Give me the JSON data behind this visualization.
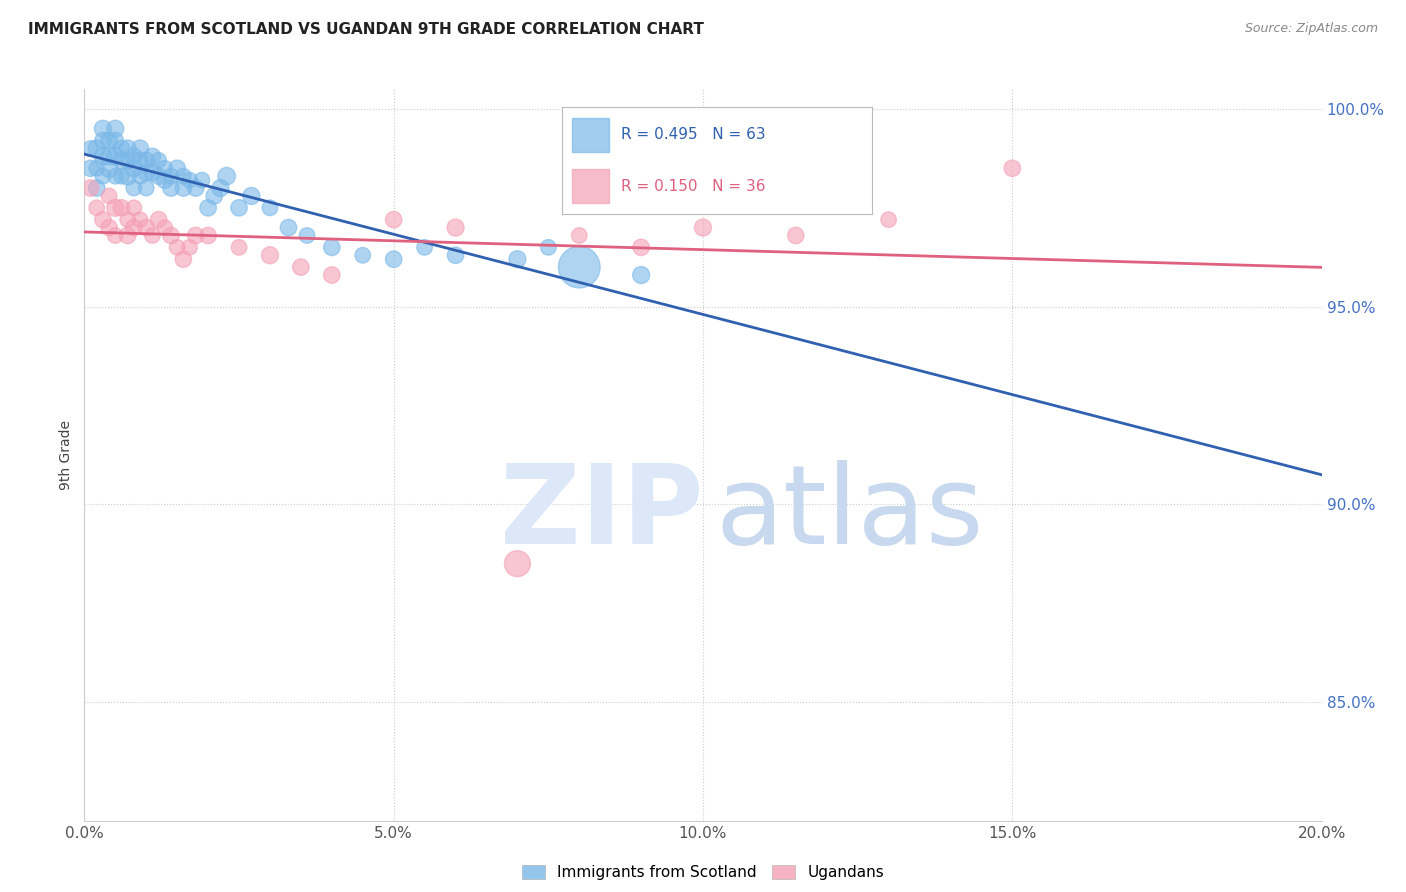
{
  "title": "IMMIGRANTS FROM SCOTLAND VS UGANDAN 9TH GRADE CORRELATION CHART",
  "source": "Source: ZipAtlas.com",
  "ylabel": "9th Grade",
  "xlim": [
    0.0,
    0.2
  ],
  "ylim": [
    0.82,
    1.005
  ],
  "ytick_labels": [
    "85.0%",
    "90.0%",
    "95.0%",
    "100.0%"
  ],
  "ytick_values": [
    0.85,
    0.9,
    0.95,
    1.0
  ],
  "xtick_labels": [
    "0.0%",
    "5.0%",
    "10.0%",
    "15.0%",
    "20.0%"
  ],
  "xtick_values": [
    0.0,
    0.05,
    0.1,
    0.15,
    0.2
  ],
  "blue_color": "#7ab8e8",
  "pink_color": "#f4a0b5",
  "blue_line_color": "#3060b0",
  "pink_line_color": "#e06080",
  "legend_blue_text_color": "#3060b0",
  "legend_pink_text_color": "#e06080",
  "axis_label_color": "#444444",
  "right_tick_color": "#4472c4",
  "watermark_zip_color": "#dce8f5",
  "watermark_atlas_color": "#c8d8ee",
  "blue_R": 0.495,
  "blue_N": 63,
  "pink_R": 0.15,
  "pink_N": 36,
  "blue_scatter_x": [
    0.001,
    0.001,
    0.002,
    0.002,
    0.002,
    0.003,
    0.003,
    0.003,
    0.003,
    0.004,
    0.004,
    0.004,
    0.005,
    0.005,
    0.005,
    0.005,
    0.006,
    0.006,
    0.006,
    0.007,
    0.007,
    0.007,
    0.008,
    0.008,
    0.008,
    0.009,
    0.009,
    0.009,
    0.01,
    0.01,
    0.01,
    0.011,
    0.011,
    0.012,
    0.012,
    0.013,
    0.013,
    0.014,
    0.014,
    0.015,
    0.016,
    0.016,
    0.017,
    0.018,
    0.019,
    0.02,
    0.021,
    0.022,
    0.023,
    0.025,
    0.027,
    0.03,
    0.033,
    0.036,
    0.04,
    0.045,
    0.05,
    0.055,
    0.06,
    0.07,
    0.075,
    0.08,
    0.09
  ],
  "blue_scatter_y": [
    0.99,
    0.985,
    0.99,
    0.985,
    0.98,
    0.995,
    0.992,
    0.988,
    0.983,
    0.992,
    0.988,
    0.985,
    0.995,
    0.992,
    0.988,
    0.983,
    0.99,
    0.987,
    0.983,
    0.99,
    0.987,
    0.983,
    0.988,
    0.985,
    0.98,
    0.99,
    0.987,
    0.983,
    0.987,
    0.984,
    0.98,
    0.988,
    0.984,
    0.987,
    0.983,
    0.985,
    0.982,
    0.983,
    0.98,
    0.985,
    0.983,
    0.98,
    0.982,
    0.98,
    0.982,
    0.975,
    0.978,
    0.98,
    0.983,
    0.975,
    0.978,
    0.975,
    0.97,
    0.968,
    0.965,
    0.963,
    0.962,
    0.965,
    0.963,
    0.962,
    0.965,
    0.96,
    0.958
  ],
  "blue_scatter_size": [
    25,
    28,
    30,
    25,
    28,
    30,
    28,
    32,
    25,
    28,
    30,
    35,
    30,
    28,
    32,
    25,
    28,
    30,
    25,
    30,
    28,
    32,
    28,
    30,
    25,
    30,
    28,
    25,
    28,
    30,
    25,
    28,
    30,
    25,
    28,
    25,
    28,
    25,
    28,
    28,
    25,
    28,
    25,
    28,
    25,
    28,
    28,
    30,
    32,
    28,
    30,
    25,
    28,
    25,
    28,
    25,
    28,
    25,
    28,
    30,
    25,
    180,
    30
  ],
  "pink_scatter_x": [
    0.001,
    0.002,
    0.003,
    0.004,
    0.004,
    0.005,
    0.005,
    0.006,
    0.007,
    0.007,
    0.008,
    0.008,
    0.009,
    0.01,
    0.011,
    0.012,
    0.013,
    0.014,
    0.015,
    0.016,
    0.017,
    0.018,
    0.02,
    0.025,
    0.03,
    0.035,
    0.04,
    0.05,
    0.06,
    0.07,
    0.08,
    0.09,
    0.1,
    0.115,
    0.13,
    0.15
  ],
  "pink_scatter_y": [
    0.98,
    0.975,
    0.972,
    0.978,
    0.97,
    0.975,
    0.968,
    0.975,
    0.972,
    0.968,
    0.975,
    0.97,
    0.972,
    0.97,
    0.968,
    0.972,
    0.97,
    0.968,
    0.965,
    0.962,
    0.965,
    0.968,
    0.968,
    0.965,
    0.963,
    0.96,
    0.958,
    0.972,
    0.97,
    0.885,
    0.968,
    0.965,
    0.97,
    0.968,
    0.972,
    0.985
  ],
  "pink_scatter_size": [
    28,
    25,
    28,
    25,
    28,
    30,
    25,
    28,
    25,
    28,
    25,
    28,
    25,
    28,
    25,
    28,
    25,
    28,
    25,
    28,
    25,
    28,
    28,
    25,
    30,
    28,
    28,
    28,
    30,
    70,
    25,
    28,
    30,
    28,
    25,
    28
  ]
}
